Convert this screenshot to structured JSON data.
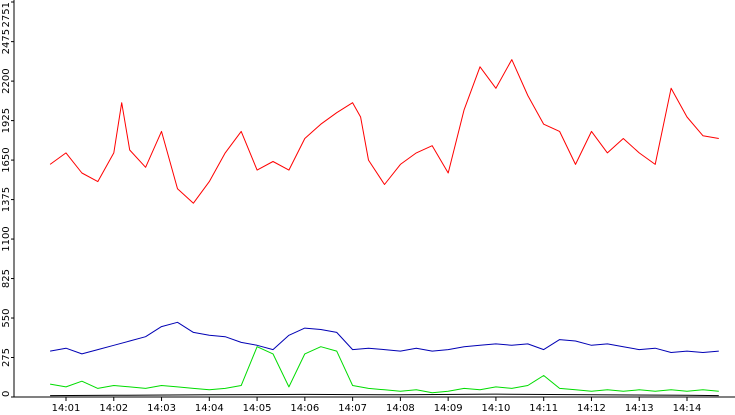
{
  "chart_data": {
    "type": "line",
    "title": "",
    "xlabel": "",
    "ylabel": "",
    "x_ticks": [
      "14:01",
      "14:02",
      "14:03",
      "14:04",
      "14:05",
      "14:06",
      "14:07",
      "14:08",
      "14:09",
      "14:10",
      "14:11",
      "14:12",
      "14:13",
      "14:14"
    ],
    "y_ticks": [
      0,
      275,
      550,
      825,
      1100,
      1375,
      1650,
      1925,
      2200,
      2475,
      2751
    ],
    "ylim": [
      0,
      2751
    ],
    "grid": false,
    "legend": "none",
    "colors": {
      "red": "#ff0000",
      "blue": "#0000b4",
      "green": "#00dc00",
      "black": "#000000",
      "axis": "#000000"
    },
    "series": [
      {
        "color": "red",
        "x": [
          "14:00:40",
          "14:01:00",
          "14:01:20",
          "14:01:40",
          "14:02:00",
          "14:02:10",
          "14:02:20",
          "14:02:40",
          "14:03:00",
          "14:03:20",
          "14:03:40",
          "14:04:00",
          "14:04:20",
          "14:04:40",
          "14:05:00",
          "14:05:20",
          "14:05:40",
          "14:06:00",
          "14:06:20",
          "14:06:40",
          "14:07:00",
          "14:07:10",
          "14:07:20",
          "14:07:40",
          "14:08:00",
          "14:08:20",
          "14:08:40",
          "14:09:00",
          "14:09:20",
          "14:09:40",
          "14:10:00",
          "14:10:20",
          "14:10:40",
          "14:11:00",
          "14:11:20",
          "14:11:40",
          "14:12:00",
          "14:12:20",
          "14:12:40",
          "14:13:00",
          "14:13:20",
          "14:13:40",
          "14:14:00",
          "14:14:20",
          "14:14:40"
        ],
        "values": [
          1620,
          1700,
          1560,
          1500,
          1700,
          2050,
          1720,
          1600,
          1850,
          1450,
          1350,
          1500,
          1700,
          1850,
          1580,
          1640,
          1580,
          1800,
          1900,
          1980,
          2050,
          1950,
          1650,
          1480,
          1620,
          1700,
          1750,
          1560,
          2000,
          2300,
          2150,
          2350,
          2100,
          1900,
          1850,
          1620,
          1850,
          1700,
          1800,
          1700,
          1620,
          2150,
          1950,
          1820,
          1800
        ]
      },
      {
        "color": "blue",
        "x": [
          "14:00:40",
          "14:01:00",
          "14:01:20",
          "14:01:40",
          "14:02:00",
          "14:02:20",
          "14:02:40",
          "14:03:00",
          "14:03:20",
          "14:03:40",
          "14:04:00",
          "14:04:20",
          "14:04:40",
          "14:05:00",
          "14:05:20",
          "14:05:40",
          "14:06:00",
          "14:06:20",
          "14:06:40",
          "14:07:00",
          "14:07:20",
          "14:07:40",
          "14:08:00",
          "14:08:20",
          "14:08:40",
          "14:09:00",
          "14:09:20",
          "14:09:40",
          "14:10:00",
          "14:10:20",
          "14:10:40",
          "14:11:00",
          "14:11:20",
          "14:11:40",
          "14:12:00",
          "14:12:20",
          "14:12:40",
          "14:13:00",
          "14:13:20",
          "14:13:40",
          "14:14:00",
          "14:14:20",
          "14:14:40"
        ],
        "values": [
          320,
          340,
          300,
          330,
          360,
          390,
          420,
          490,
          520,
          450,
          430,
          420,
          380,
          360,
          330,
          430,
          480,
          470,
          450,
          330,
          340,
          330,
          320,
          340,
          320,
          330,
          350,
          360,
          370,
          360,
          370,
          330,
          400,
          390,
          360,
          370,
          350,
          330,
          340,
          310,
          320,
          310,
          320
        ]
      },
      {
        "color": "green",
        "x": [
          "14:00:40",
          "14:01:00",
          "14:01:20",
          "14:01:40",
          "14:02:00",
          "14:02:20",
          "14:02:40",
          "14:03:00",
          "14:03:20",
          "14:03:40",
          "14:04:00",
          "14:04:20",
          "14:04:40",
          "14:05:00",
          "14:05:20",
          "14:05:40",
          "14:06:00",
          "14:06:20",
          "14:06:40",
          "14:07:00",
          "14:07:20",
          "14:07:40",
          "14:08:00",
          "14:08:20",
          "14:08:40",
          "14:09:00",
          "14:09:20",
          "14:09:40",
          "14:10:00",
          "14:10:20",
          "14:10:40",
          "14:11:00",
          "14:11:20",
          "14:11:40",
          "14:12:00",
          "14:12:20",
          "14:12:40",
          "14:13:00",
          "14:13:20",
          "14:13:40",
          "14:14:00",
          "14:14:20",
          "14:14:40"
        ],
        "values": [
          90,
          70,
          110,
          60,
          80,
          70,
          60,
          80,
          70,
          60,
          50,
          60,
          80,
          350,
          300,
          70,
          300,
          350,
          320,
          80,
          60,
          50,
          40,
          50,
          30,
          40,
          60,
          50,
          70,
          60,
          80,
          150,
          60,
          50,
          40,
          50,
          40,
          50,
          40,
          50,
          40,
          50,
          40
        ]
      },
      {
        "color": "black",
        "x": [
          "14:00:40",
          "14:02:00",
          "14:04:00",
          "14:06:00",
          "14:08:00",
          "14:10:00",
          "14:12:00",
          "14:14:00",
          "14:14:40"
        ],
        "values": [
          10,
          12,
          15,
          18,
          15,
          20,
          15,
          12,
          10
        ]
      }
    ]
  }
}
